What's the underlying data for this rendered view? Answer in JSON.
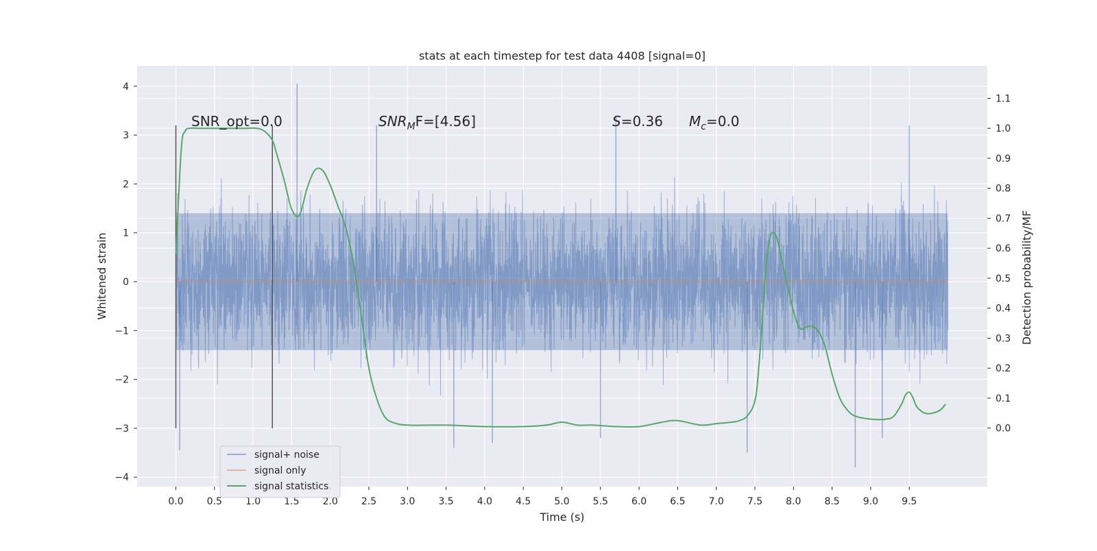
{
  "chart_data": {
    "type": "line",
    "title": "stats at each timestep for test data 4408 [signal=0]",
    "xlabel": "Time (s)",
    "ylabel": "Whitened strain",
    "y2label": "Detection probability/MF",
    "xlim": [
      -0.5,
      10.5
    ],
    "ylim": [
      -4.2,
      4.4
    ],
    "y2lim": [
      -0.2,
      1.155
    ],
    "xticks": [
      "0.0",
      "0.5",
      "1.0",
      "1.5",
      "2.0",
      "2.5",
      "3.0",
      "3.5",
      "4.0",
      "4.5",
      "5.0",
      "5.5",
      "6.0",
      "6.5",
      "7.0",
      "7.5",
      "8.0",
      "8.5",
      "9.0",
      "9.5"
    ],
    "yticks": [
      "−4",
      "−3",
      "−2",
      "−1",
      "0",
      "1",
      "2",
      "3",
      "4"
    ],
    "y2ticks": [
      "0.0",
      "0.1",
      "0.2",
      "0.3",
      "0.4",
      "0.5",
      "0.6",
      "0.7",
      "0.8",
      "0.9",
      "1.0",
      "1.1"
    ],
    "grid": true,
    "legend_position": "lower-left",
    "annotations": {
      "snr_opt": "SNR_opt=0.0",
      "snr_mf_base": "SNR",
      "snr_mf_sub": "M",
      "snr_mf_rest": "F=[4.56]",
      "s_name": "S",
      "s_rest": "=0.36",
      "mc_base": "M",
      "mc_sub": "c",
      "mc_rest": "=0.0"
    },
    "vertical_lines_x": [
      0.0,
      1.25
    ],
    "vertical_lines_yrange": [
      -3.0,
      3.2
    ],
    "series": [
      {
        "name": "signal+ noise",
        "color": "#4c72b0",
        "note_style": "dense noise trace, t from 0 to 10 s",
        "t_range": [
          0,
          10
        ],
        "band_amplitude": 1.4,
        "peaks": [
          [
            1.57,
            4.05
          ],
          [
            2.6,
            3.2
          ],
          [
            5.7,
            3.4
          ],
          [
            9.5,
            3.2
          ],
          [
            0.05,
            -3.45
          ],
          [
            3.6,
            -3.4
          ],
          [
            4.1,
            -3.3
          ],
          [
            5.5,
            -3.2
          ],
          [
            7.4,
            -3.5
          ],
          [
            8.8,
            -3.8
          ],
          [
            9.15,
            -3.2
          ]
        ]
      },
      {
        "name": "signal only",
        "color": "#dd8452",
        "x": [
          0,
          10
        ],
        "y": [
          0,
          0
        ]
      },
      {
        "name": "signal statistics",
        "color": "#55a868",
        "axis": "right",
        "x": [
          0.0,
          0.07,
          0.12,
          0.18,
          0.3,
          0.5,
          0.7,
          0.9,
          1.05,
          1.15,
          1.25,
          1.3,
          1.4,
          1.5,
          1.6,
          1.7,
          1.8,
          1.9,
          2.0,
          2.1,
          2.2,
          2.3,
          2.4,
          2.5,
          2.6,
          2.7,
          2.8,
          3.0,
          3.5,
          4.0,
          4.5,
          4.8,
          5.0,
          5.2,
          5.4,
          5.7,
          6.0,
          6.3,
          6.5,
          6.8,
          7.0,
          7.2,
          7.3,
          7.4,
          7.5,
          7.55,
          7.6,
          7.65,
          7.7,
          7.75,
          7.8,
          7.9,
          8.0,
          8.05,
          8.1,
          8.2,
          8.3,
          8.4,
          8.5,
          8.6,
          8.7,
          8.8,
          9.0,
          9.2,
          9.3,
          9.4,
          9.45,
          9.5,
          9.55,
          9.6,
          9.7,
          9.8,
          9.9,
          9.97
        ],
        "y": [
          0.58,
          0.93,
          0.99,
          1.0,
          1.0,
          1.0,
          1.0,
          1.0,
          1.0,
          0.99,
          0.96,
          0.92,
          0.83,
          0.73,
          0.71,
          0.8,
          0.86,
          0.86,
          0.81,
          0.74,
          0.67,
          0.55,
          0.38,
          0.2,
          0.1,
          0.04,
          0.02,
          0.01,
          0.01,
          0.005,
          0.005,
          0.01,
          0.02,
          0.01,
          0.01,
          0.005,
          0.005,
          0.02,
          0.025,
          0.01,
          0.015,
          0.02,
          0.025,
          0.04,
          0.09,
          0.2,
          0.38,
          0.55,
          0.64,
          0.65,
          0.62,
          0.5,
          0.39,
          0.35,
          0.33,
          0.34,
          0.33,
          0.28,
          0.18,
          0.1,
          0.06,
          0.04,
          0.03,
          0.03,
          0.04,
          0.08,
          0.11,
          0.12,
          0.1,
          0.07,
          0.05,
          0.05,
          0.06,
          0.08
        ]
      }
    ]
  }
}
